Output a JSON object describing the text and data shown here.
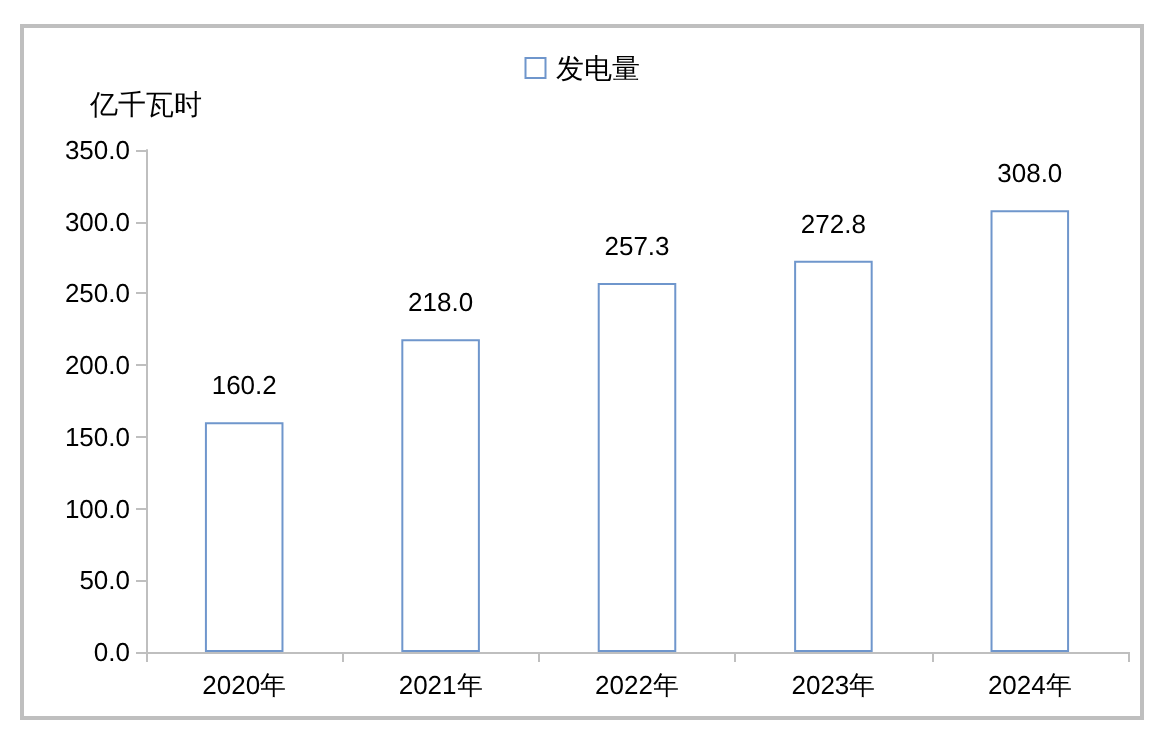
{
  "chart_data": {
    "type": "bar",
    "ylabel": "亿千瓦时",
    "categories": [
      "2020年",
      "2021年",
      "2022年",
      "2023年",
      "2024年"
    ],
    "series": [
      {
        "name": "发电量",
        "color": "#6f96cc",
        "values": [
          160.2,
          218.0,
          257.3,
          272.8,
          308.0
        ],
        "value_labels": [
          "160.2",
          "218.0",
          "257.3",
          "272.8",
          "308.0"
        ]
      }
    ],
    "ylim": [
      0,
      350
    ],
    "yticks": [
      {
        "value": 0,
        "label": "0.0"
      },
      {
        "value": 50,
        "label": "50.0"
      },
      {
        "value": 100,
        "label": "100.0"
      },
      {
        "value": 150,
        "label": "150.0"
      },
      {
        "value": 200,
        "label": "200.0"
      },
      {
        "value": 250,
        "label": "250.0"
      },
      {
        "value": 300,
        "label": "300.0"
      },
      {
        "value": 350,
        "label": "350.0"
      }
    ],
    "grid": false,
    "legend": "top"
  }
}
